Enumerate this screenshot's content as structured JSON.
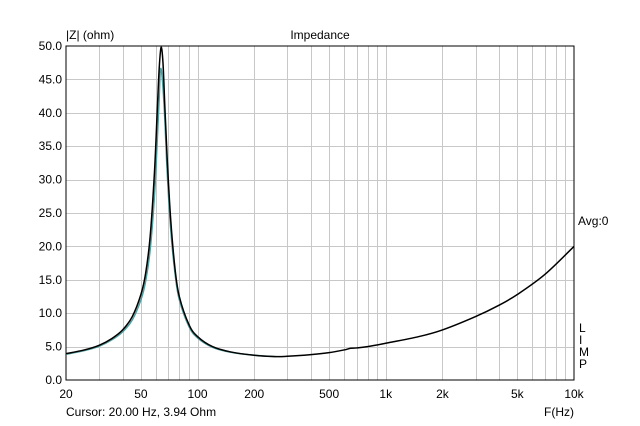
{
  "chart_data": {
    "type": "line",
    "title": "Impedance",
    "ylabel": "|Z| (ohm)",
    "xlabel": "F(Hz)",
    "x_scale": "log",
    "xlim": [
      20,
      10000
    ],
    "ylim": [
      0,
      50
    ],
    "grid": true,
    "x_ticks": [
      {
        "value": 20,
        "label": "20"
      },
      {
        "value": 50,
        "label": "50"
      },
      {
        "value": 100,
        "label": "100"
      },
      {
        "value": 200,
        "label": "200"
      },
      {
        "value": 500,
        "label": "500"
      },
      {
        "value": 1000,
        "label": "1k"
      },
      {
        "value": 2000,
        "label": "2k"
      },
      {
        "value": 5000,
        "label": "5k"
      },
      {
        "value": 10000,
        "label": "10k"
      }
    ],
    "y_ticks": [
      {
        "value": 0,
        "label": "0.0"
      },
      {
        "value": 5,
        "label": "5.0"
      },
      {
        "value": 10,
        "label": "10.0"
      },
      {
        "value": 15,
        "label": "15.0"
      },
      {
        "value": 20,
        "label": "20.0"
      },
      {
        "value": 25,
        "label": "25.0"
      },
      {
        "value": 30,
        "label": "30.0"
      },
      {
        "value": 35,
        "label": "35.0"
      },
      {
        "value": 40,
        "label": "40.0"
      },
      {
        "value": 45,
        "label": "45.0"
      },
      {
        "value": 50,
        "label": "50.0"
      }
    ],
    "series": [
      {
        "color": "#000000",
        "points": [
          [
            20,
            3.94
          ],
          [
            25,
            4.5
          ],
          [
            30,
            5.2
          ],
          [
            35,
            6.2
          ],
          [
            40,
            7.5
          ],
          [
            45,
            9.5
          ],
          [
            50,
            12.8
          ],
          [
            53,
            16.0
          ],
          [
            56,
            21.5
          ],
          [
            59,
            31.0
          ],
          [
            61,
            40.0
          ],
          [
            62.5,
            46.5
          ],
          [
            64,
            49.8
          ],
          [
            65.5,
            47.5
          ],
          [
            67,
            41.0
          ],
          [
            69,
            33.0
          ],
          [
            72,
            24.0
          ],
          [
            76,
            16.5
          ],
          [
            80,
            12.5
          ],
          [
            90,
            8.3
          ],
          [
            100,
            6.5
          ],
          [
            120,
            5.0
          ],
          [
            150,
            4.2
          ],
          [
            200,
            3.7
          ],
          [
            260,
            3.5
          ],
          [
            300,
            3.55
          ],
          [
            400,
            3.8
          ],
          [
            500,
            4.1
          ],
          [
            600,
            4.5
          ],
          [
            650,
            4.75
          ],
          [
            700,
            4.8
          ],
          [
            800,
            5.0
          ],
          [
            1000,
            5.5
          ],
          [
            1500,
            6.5
          ],
          [
            2000,
            7.5
          ],
          [
            3000,
            9.5
          ],
          [
            4000,
            11.2
          ],
          [
            5000,
            12.8
          ],
          [
            7000,
            15.8
          ],
          [
            10000,
            20.0
          ]
        ]
      },
      {
        "color": "#4f9d9d",
        "points": [
          [
            20,
            3.85
          ],
          [
            25,
            4.4
          ],
          [
            30,
            5.05
          ],
          [
            35,
            6.0
          ],
          [
            40,
            7.2
          ],
          [
            45,
            9.0
          ],
          [
            50,
            12.0
          ],
          [
            53,
            14.8
          ],
          [
            56,
            19.5
          ],
          [
            59,
            27.5
          ],
          [
            61,
            35.5
          ],
          [
            62.5,
            42.0
          ],
          [
            63.5,
            46.5
          ],
          [
            65,
            45.0
          ],
          [
            67,
            39.0
          ],
          [
            69,
            31.0
          ],
          [
            72,
            22.5
          ],
          [
            76,
            15.8
          ],
          [
            80,
            12.0
          ],
          [
            90,
            8.0
          ],
          [
            100,
            6.3
          ],
          [
            120,
            4.9
          ],
          [
            150,
            4.15
          ],
          [
            200,
            3.7
          ],
          [
            260,
            3.5
          ]
        ]
      }
    ],
    "side_label": "Avg:0",
    "side_letters": [
      "L",
      "I",
      "M",
      "P"
    ],
    "cursor_text": "Cursor: 20.00 Hz, 3.94 Ohm"
  }
}
